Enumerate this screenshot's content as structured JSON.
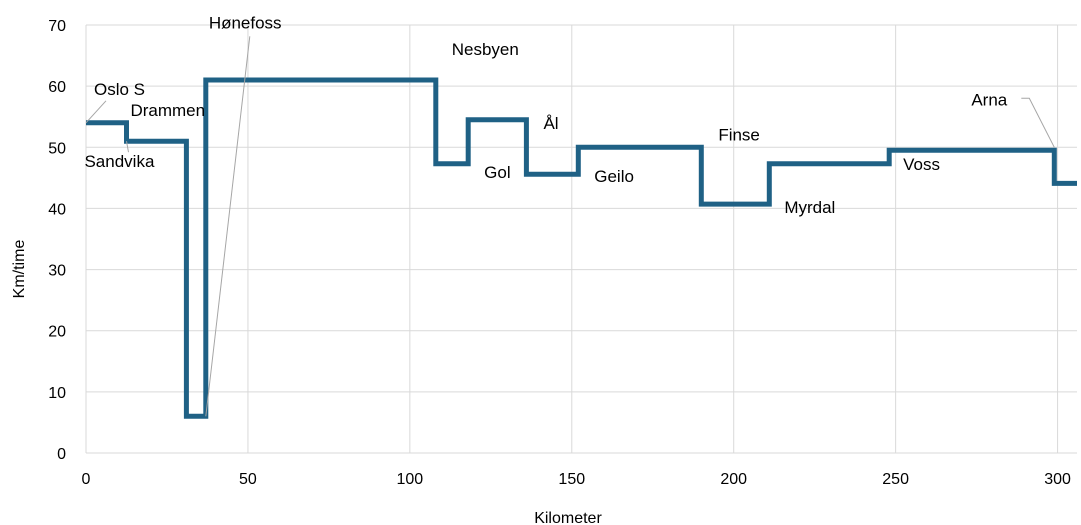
{
  "chart_data": {
    "type": "line",
    "step": true,
    "title": "",
    "xlabel": "Kilometer",
    "ylabel": "Km/time",
    "xlim": [
      0,
      306
    ],
    "ylim": [
      0,
      70
    ],
    "grid": true,
    "color": "#1f6185",
    "x_ticks": [
      0,
      50,
      100,
      150,
      200,
      250,
      300
    ],
    "y_ticks": [
      0,
      10,
      20,
      30,
      40,
      50,
      60,
      70
    ],
    "series": [
      {
        "points": [
          [
            0,
            54
          ],
          [
            12.5,
            54
          ],
          [
            12.5,
            51
          ],
          [
            31,
            51
          ],
          [
            31,
            6
          ],
          [
            37,
            6
          ],
          [
            37,
            61
          ],
          [
            108,
            61
          ],
          [
            108,
            47.3
          ],
          [
            118,
            47.3
          ],
          [
            118,
            54.5
          ],
          [
            136,
            54.5
          ],
          [
            136,
            45.6
          ],
          [
            152,
            45.6
          ],
          [
            152,
            50
          ],
          [
            190,
            50
          ],
          [
            190,
            40.7
          ],
          [
            211,
            40.7
          ],
          [
            211,
            47.3
          ],
          [
            248,
            47.3
          ],
          [
            248,
            49.5
          ],
          [
            299,
            49.5
          ],
          [
            299,
            44.1
          ],
          [
            306,
            44.1
          ]
        ]
      }
    ],
    "annotations": [
      {
        "text": "Oslo S",
        "x": 0,
        "y": 54,
        "leader": true
      },
      {
        "text": "Drammen",
        "x": 12.5,
        "y": 54
      },
      {
        "text": "Sandvika",
        "x": 12.5,
        "y": 51,
        "leader": true
      },
      {
        "text": "Hønefoss",
        "x": 37,
        "y": 6,
        "leader": true
      },
      {
        "text": "Nesbyen",
        "x": 108,
        "y": 61
      },
      {
        "text": "Gol",
        "x": 118,
        "y": 47.3
      },
      {
        "text": "Ål",
        "x": 136,
        "y": 54.5
      },
      {
        "text": "Geilo",
        "x": 152,
        "y": 45.6
      },
      {
        "text": "Finse",
        "x": 190,
        "y": 50
      },
      {
        "text": "Myrdal",
        "x": 211,
        "y": 40.7
      },
      {
        "text": "Voss",
        "x": 248,
        "y": 47.3
      },
      {
        "text": "Arna",
        "x": 299,
        "y": 49.5,
        "leader": true
      }
    ]
  }
}
